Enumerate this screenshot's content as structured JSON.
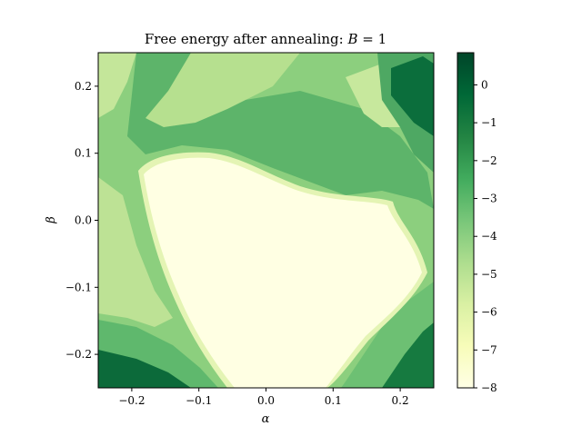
{
  "chart_data": {
    "type": "heatmap",
    "title": "Free energy after annealing: B = 1",
    "title_parts": {
      "prefix": "Free energy after annealing: ",
      "var": "B",
      "suffix": " = 1"
    },
    "xlabel": "α",
    "ylabel": "β",
    "xlim": [
      -0.25,
      0.25
    ],
    "ylim": [
      -0.25,
      0.25
    ],
    "xticks": [
      -0.2,
      -0.1,
      0.0,
      0.1,
      0.2
    ],
    "xtick_labels": [
      "−0.2",
      "−0.1",
      "0.0",
      "0.1",
      "0.2"
    ],
    "yticks": [
      -0.2,
      -0.1,
      0.0,
      0.1,
      0.2
    ],
    "ytick_labels": [
      "−0.2",
      "−0.1",
      "0.0",
      "0.1",
      "0.2"
    ],
    "colorbar": {
      "cmap": "YlGn",
      "vmin": -8,
      "vmax": 0.85,
      "ticks": [
        0,
        -1,
        -2,
        -3,
        -4,
        -5,
        -6,
        -7,
        -8
      ],
      "tick_labels": [
        "0",
        "−1",
        "−2",
        "−3",
        "−4",
        "−5",
        "−6",
        "−7",
        "−8"
      ],
      "colors": [
        "#ffffe5",
        "#f7fcb9",
        "#d9f0a3",
        "#addd8e",
        "#78c679",
        "#41ab5d",
        "#238443",
        "#006837",
        "#004529"
      ]
    },
    "value_range": [
      -8,
      0.8
    ]
  }
}
